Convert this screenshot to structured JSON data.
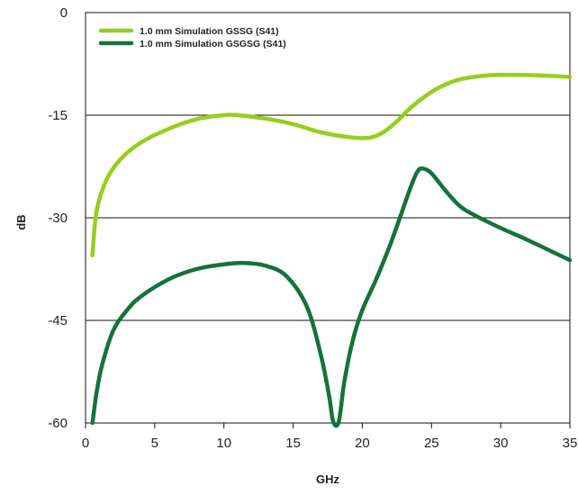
{
  "chart_data": {
    "type": "line",
    "title": "",
    "xlabel": "GHz",
    "ylabel": "dB",
    "xlim": [
      0,
      35
    ],
    "ylim": [
      -60,
      0
    ],
    "xticks": [
      0,
      5,
      10,
      15,
      20,
      25,
      30,
      35
    ],
    "yticks": [
      0,
      -15,
      -30,
      -45,
      -60
    ],
    "grid": "horizontal",
    "legend_position": "top-left",
    "series": [
      {
        "name": "1.0 mm Simulation GSSG (S41)",
        "color": "#94cf1e",
        "x": [
          0.5,
          0.8,
          1.5,
          2.5,
          4,
          6,
          8,
          10,
          11,
          13,
          15,
          17,
          19,
          20.5,
          21.5,
          22.5,
          23.5,
          24.5,
          25.5,
          27,
          29,
          31,
          33,
          35
        ],
        "y": [
          -35.5,
          -29,
          -24.5,
          -21.5,
          -19,
          -17,
          -15.6,
          -15,
          -15,
          -15.5,
          -16.3,
          -17.5,
          -18.2,
          -18.3,
          -17.5,
          -15.9,
          -13.9,
          -12.3,
          -11,
          -9.8,
          -9.2,
          -9.1,
          -9.2,
          -9.4
        ]
      },
      {
        "name": "1.0 mm Simulation GSGSG (S41)",
        "color": "#13733a",
        "x": [
          0.5,
          0.8,
          1.2,
          2,
          3,
          4,
          6,
          8,
          10,
          11.5,
          13,
          14.5,
          16,
          17,
          17.6,
          17.9,
          18.3,
          18.7,
          19.3,
          20,
          21,
          22,
          22.8,
          23.5,
          24,
          24.4,
          25,
          26,
          27,
          28,
          30,
          32,
          35
        ],
        "y": [
          -60,
          -55.5,
          -51.5,
          -46.5,
          -43.5,
          -41.5,
          -39,
          -37.5,
          -36.8,
          -36.6,
          -37,
          -38.5,
          -43,
          -50,
          -56,
          -59.8,
          -59.8,
          -54,
          -48,
          -43.5,
          -39,
          -34,
          -29.5,
          -25.5,
          -23.2,
          -22.8,
          -23.5,
          -26,
          -28.2,
          -29.5,
          -31.5,
          -33.3,
          -36.2
        ]
      }
    ]
  }
}
